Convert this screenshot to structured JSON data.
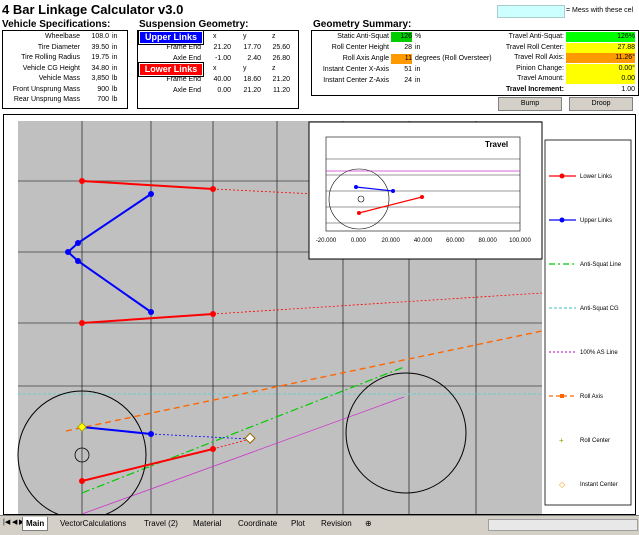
{
  "title": "4 Bar Linkage Calculator v3.0",
  "note": "= Mess with these cel",
  "vehicle": {
    "header": "Vehicle Specifications:",
    "rows": [
      {
        "label": "Wheelbase",
        "value": "108.0",
        "unit": "in"
      },
      {
        "label": "Tire Diameter",
        "value": "39.50",
        "unit": "in"
      },
      {
        "label": "Tire Rolling Radius",
        "value": "19.75",
        "unit": "in"
      },
      {
        "label": "Vehicle CG Height",
        "value": "34.80",
        "unit": "in"
      },
      {
        "label": "Vehicle Mass",
        "value": "3,850",
        "unit": "lb"
      },
      {
        "label": "Front Unsprung Mass",
        "value": "900",
        "unit": "lb"
      },
      {
        "label": "Rear Unsprung Mass",
        "value": "700",
        "unit": "lb"
      }
    ]
  },
  "suspension": {
    "header": "Suspension Geometry:",
    "upper_label": "Upper Links",
    "lower_label": "Lower Links",
    "cols": [
      "x",
      "y",
      "z"
    ],
    "upper": [
      {
        "label": "Frame End",
        "x": "21.20",
        "y": "17.70",
        "z": "25.60"
      },
      {
        "label": "Axle End",
        "x": "-1.00",
        "y": "2.40",
        "z": "26.80"
      }
    ],
    "lower": [
      {
        "label": "Frame End",
        "x": "40.00",
        "y": "18.60",
        "z": "21.20"
      },
      {
        "label": "Axle End",
        "x": "0.00",
        "y": "21.20",
        "z": "11.20"
      }
    ]
  },
  "summary": {
    "header": "Geometry Summary:",
    "rows": [
      {
        "label": "Static Anti-Squat",
        "value": "126",
        "unit": "%"
      },
      {
        "label": "Roll Center Height",
        "value": "28",
        "unit": "in"
      },
      {
        "label": "Roll Axis Angle",
        "value": "11",
        "unit": "degrees (Roll Oversteer)"
      },
      {
        "label": "Instant Center X-Axis",
        "value": "51",
        "unit": "in"
      },
      {
        "label": "Instant Center Z-Axis",
        "value": "24",
        "unit": "in"
      }
    ],
    "travel": [
      {
        "label": "Travel Anti-Squat:",
        "value": "126%"
      },
      {
        "label": "Travel Roll Center:",
        "value": "27.88"
      },
      {
        "label": "Travel Roll Axis:",
        "value": "11.26°"
      },
      {
        "label": "Pinion Change:",
        "value": "0.00°"
      },
      {
        "label": "Travel Amount:",
        "value": "0.00"
      },
      {
        "label": "Travel Increment:",
        "value": "1.00"
      }
    ],
    "bump_label": "Bump",
    "droop_label": "Droop"
  },
  "colors": {
    "green": "#00cc00",
    "yellow": "#ffff00",
    "orange": "#ff9900",
    "red": "#ff0000",
    "blue": "#0000ff",
    "cyan": "#ccffff"
  },
  "legend": [
    "Lower Links",
    "Upper Links",
    "Anti-Squat Line",
    "Anti-Squat CG",
    "100% AS Line",
    "Roll Axis",
    "Roll Center",
    "Instant Center"
  ],
  "inset": {
    "title": "Travel",
    "x_ticks": [
      "-20.000",
      "0.000",
      "20.000",
      "40.000",
      "60.000",
      "80.000",
      "100.000"
    ]
  },
  "tabs": [
    "Main",
    "VectorCalculations",
    "Travel (2)",
    "Material",
    "Coordinate",
    "Plot",
    "Revision"
  ]
}
